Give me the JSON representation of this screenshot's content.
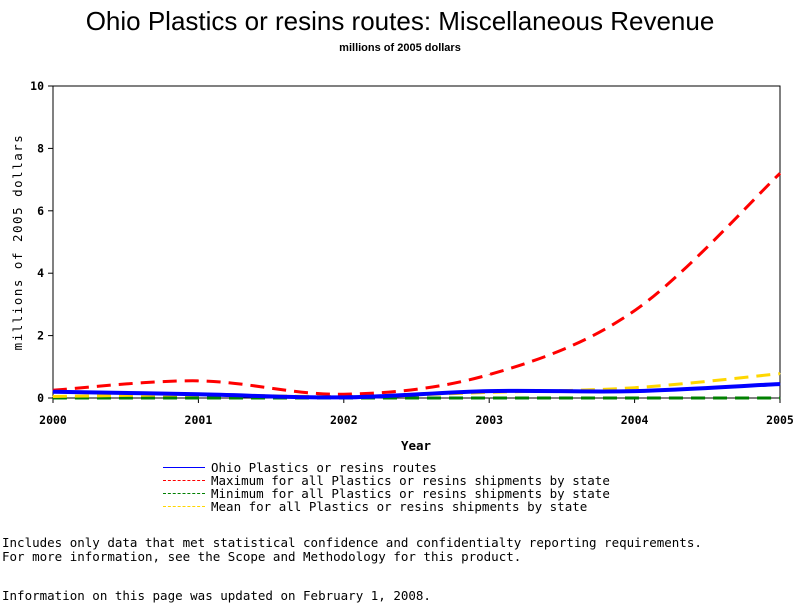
{
  "header": {
    "title": "Ohio Plastics or resins routes: Miscellaneous Revenue",
    "subtitle": "millions of 2005 dollars"
  },
  "chart_data": {
    "type": "line",
    "title": "Ohio Plastics or resins routes: Miscellaneous Revenue",
    "subtitle": "millions of 2005 dollars",
    "xlabel": "Year",
    "ylabel": "millions of 2005 dollars",
    "x": [
      2000,
      2001,
      2002,
      2003,
      2004,
      2005
    ],
    "x_ticks": [
      "2000",
      "2001",
      "2002",
      "2003",
      "2004",
      "2005"
    ],
    "y_ticks": [
      "0",
      "2",
      "4",
      "6",
      "8",
      "10"
    ],
    "xlim": [
      2000,
      2005
    ],
    "ylim": [
      0,
      10
    ],
    "grid": false,
    "legend_position": "bottom",
    "series": [
      {
        "name": "Ohio Plastics or resins routes",
        "values": [
          0.2,
          0.12,
          0.02,
          0.22,
          0.22,
          0.45
        ],
        "color": "#0000ff",
        "style": "solid"
      },
      {
        "name": "Maximum for all Plastics or resins shipments by state",
        "values": [
          0.25,
          0.55,
          0.12,
          0.75,
          2.8,
          7.2
        ],
        "color": "#ff0000",
        "style": "dashed"
      },
      {
        "name": "Minimum for all Plastics or resins shipments by state",
        "values": [
          0.0,
          0.0,
          0.0,
          0.0,
          0.0,
          0.0
        ],
        "color": "#008000",
        "style": "dashed"
      },
      {
        "name": "Mean for all Plastics or resins shipments by state",
        "values": [
          0.05,
          0.1,
          0.05,
          0.18,
          0.33,
          0.78
        ],
        "color": "#ffd700",
        "style": "dashed"
      }
    ]
  },
  "footer": {
    "note_line1": "Includes only data that met statistical confidence and confidentialty reporting requirements.",
    "note_line2": "For more information, see the Scope and Methodology for this product.",
    "updated": "Information on this page was updated on February 1, 2008."
  }
}
